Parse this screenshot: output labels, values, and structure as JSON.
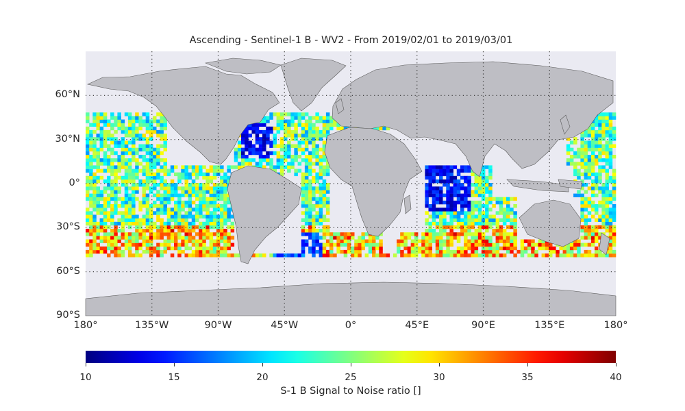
{
  "title": "Ascending - Sentinel-1 B - WV2 - From 2019/02/01 to 2019/03/01",
  "map": {
    "projection": "plate-carree",
    "extent_lon": [
      -180,
      180
    ],
    "extent_lat": [
      -90,
      90
    ],
    "background_color": "#eaeaf2",
    "land_color": "#bebec4",
    "coastline_color": "#555555",
    "gridline_style": "dotted",
    "lat_ticks": [
      60,
      30,
      0,
      -30,
      -60,
      -90
    ],
    "lat_labels": [
      "60°N",
      "30°N",
      "0°",
      "30°S",
      "60°S",
      "90°S"
    ],
    "lon_ticks": [
      -180,
      -135,
      -90,
      -45,
      0,
      45,
      90,
      135,
      180
    ],
    "lon_labels": [
      "180°",
      "135°W",
      "90°W",
      "45°W",
      "0°",
      "45°E",
      "90°E",
      "135°E",
      "180°"
    ],
    "data_lat_range": [
      -50,
      48
    ]
  },
  "colorbar": {
    "colormap": "jet",
    "min": 10,
    "max": 40,
    "ticks": [
      "10",
      "15",
      "20",
      "25",
      "30",
      "35",
      "40"
    ],
    "label": "S-1 B Signal to Noise ratio []"
  }
}
